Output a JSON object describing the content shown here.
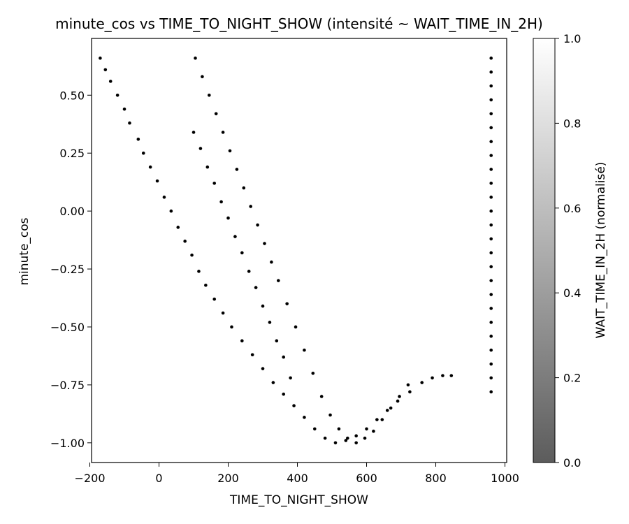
{
  "chart_data": {
    "type": "scatter",
    "title": "minute_cos vs TIME_TO_NIGHT_SHOW (intensité ~ WAIT_TIME_IN_2H)",
    "xlabel": "TIME_TO_NIGHT_SHOW",
    "ylabel": "minute_cos",
    "xlim": [
      -195,
      1005
    ],
    "ylim": [
      -1.085,
      0.745
    ],
    "x_ticks": [
      -200,
      0,
      200,
      400,
      600,
      800,
      1000
    ],
    "x_tick_labels": [
      "−200",
      "0",
      "200",
      "400",
      "600",
      "800",
      "1000"
    ],
    "y_ticks": [
      0.5,
      0.25,
      0.0,
      -0.25,
      -0.5,
      -0.75,
      -1.0
    ],
    "y_tick_labels": [
      "0.50",
      "0.25",
      "0.00",
      "−0.25",
      "−0.50",
      "−0.75",
      "−1.00"
    ],
    "colorbar": {
      "label": "WAIT_TIME_IN_2H (normalisé)",
      "range": [
        0.0,
        1.0
      ],
      "ticks": [
        0.0,
        0.2,
        0.4,
        0.6,
        0.8,
        1.0
      ],
      "tick_labels": [
        "0.0",
        "0.2",
        "0.4",
        "0.6",
        "0.8",
        "1.0"
      ],
      "color_low": "#5c5c5c",
      "color_high": "#ffffff"
    },
    "point_color": "#000000",
    "grid": false,
    "series": [
      {
        "points_x": [
          -170,
          -155,
          -140,
          -120,
          -100,
          -85,
          -60,
          -45,
          -25,
          -5,
          15,
          35,
          55,
          75,
          95,
          115,
          135,
          160,
          185,
          210,
          240,
          270,
          300,
          330,
          360,
          390,
          420,
          450,
          480,
          510,
          540,
          570,
          600,
          630,
          660,
          690,
          725,
          760,
          790,
          820,
          845,
          380,
          360,
          340,
          320,
          300,
          280,
          260,
          240,
          220,
          200,
          180,
          160,
          140,
          120,
          100,
          105,
          125,
          145,
          165,
          185,
          205,
          225,
          245,
          265,
          285,
          305,
          325,
          345,
          370,
          395,
          420,
          445,
          470,
          495,
          520,
          545,
          570,
          595,
          620,
          645,
          670,
          695,
          720,
          960,
          960,
          960,
          960,
          960,
          960,
          960,
          960,
          960,
          960,
          960,
          960,
          960,
          960,
          960,
          960,
          960,
          960,
          960,
          960,
          960,
          960,
          960,
          960,
          960
        ],
        "points_y": [
          0.66,
          0.61,
          0.56,
          0.5,
          0.44,
          0.38,
          0.31,
          0.25,
          0.19,
          0.13,
          0.06,
          0.0,
          -0.07,
          -0.13,
          -0.19,
          -0.26,
          -0.32,
          -0.38,
          -0.44,
          -0.5,
          -0.56,
          -0.62,
          -0.68,
          -0.74,
          -0.79,
          -0.84,
          -0.89,
          -0.94,
          -0.98,
          -1.0,
          -0.99,
          -0.97,
          -0.94,
          -0.9,
          -0.86,
          -0.82,
          -0.78,
          -0.74,
          -0.72,
          -0.71,
          -0.71,
          -0.72,
          -0.63,
          -0.56,
          -0.48,
          -0.41,
          -0.33,
          -0.26,
          -0.18,
          -0.11,
          -0.03,
          0.04,
          0.12,
          0.19,
          0.27,
          0.34,
          0.66,
          0.58,
          0.5,
          0.42,
          0.34,
          0.26,
          0.18,
          0.1,
          0.02,
          -0.06,
          -0.14,
          -0.22,
          -0.3,
          -0.4,
          -0.5,
          -0.6,
          -0.7,
          -0.8,
          -0.88,
          -0.94,
          -0.98,
          -1.0,
          -0.98,
          -0.95,
          -0.9,
          -0.85,
          -0.8,
          -0.75,
          0.66,
          0.6,
          0.54,
          0.48,
          0.42,
          0.36,
          0.3,
          0.24,
          0.18,
          0.12,
          0.06,
          0.0,
          -0.06,
          -0.12,
          -0.18,
          -0.24,
          -0.3,
          -0.36,
          -0.42,
          -0.48,
          -0.54,
          -0.6,
          -0.66,
          -0.72,
          -0.78
        ]
      }
    ]
  }
}
